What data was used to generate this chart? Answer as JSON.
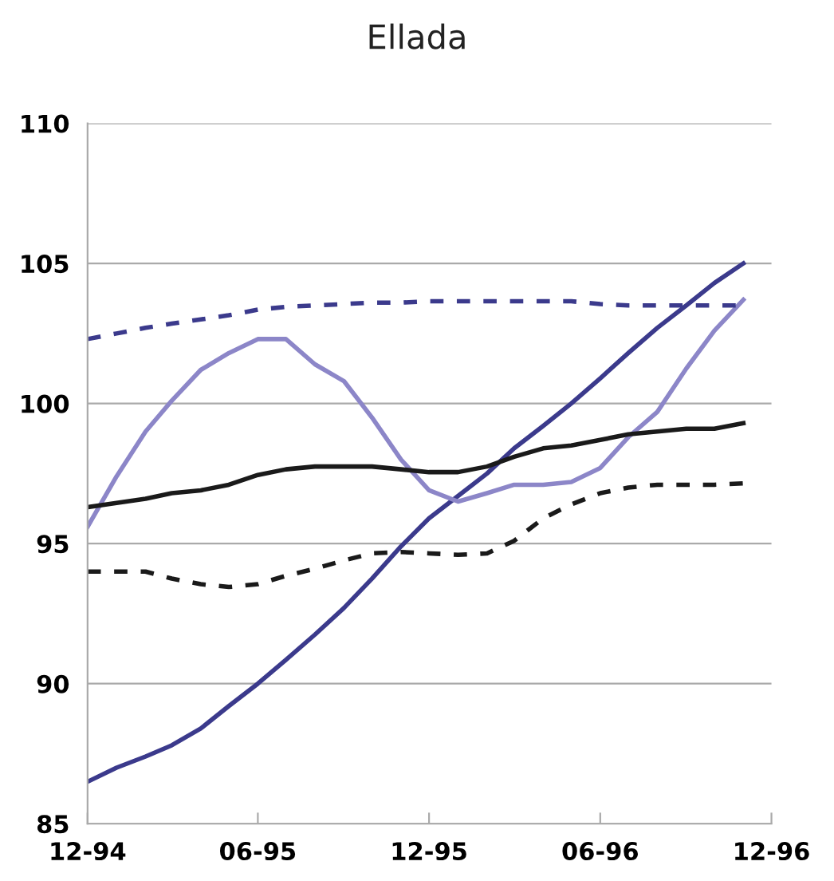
{
  "chart_data": {
    "type": "line",
    "title": "Ellada",
    "x": [
      "1994-12",
      "1995-01",
      "1995-02",
      "1995-03",
      "1995-04",
      "1995-05",
      "1995-06",
      "1995-07",
      "1995-08",
      "1995-09",
      "1995-10",
      "1995-11",
      "1995-12",
      "1996-01",
      "1996-02",
      "1996-03",
      "1996-04",
      "1996-05",
      "1996-06",
      "1996-07",
      "1996-08",
      "1996-09",
      "1996-10",
      "1996-11"
    ],
    "xlim": [
      "1994-12",
      "1996-12"
    ],
    "xticks": [
      {
        "value": "1994-12",
        "label": "12-94"
      },
      {
        "value": "1995-06",
        "label": "06-95"
      },
      {
        "value": "1995-12",
        "label": "12-95"
      },
      {
        "value": "1996-06",
        "label": "06-96"
      },
      {
        "value": "1996-12",
        "label": "12-96"
      }
    ],
    "ylim": [
      85,
      110
    ],
    "yticks": [
      85,
      90,
      95,
      100,
      105,
      110
    ],
    "grid": "y",
    "legend": false,
    "marker": "none",
    "series": [
      {
        "color": "#3b3a8c",
        "line_style": "solid",
        "values": [
          86.5,
          87.0,
          87.4,
          87.8,
          88.4,
          89.2,
          90.0,
          90.85,
          91.75,
          92.7,
          93.75,
          94.9,
          95.9,
          96.7,
          97.5,
          98.4,
          99.2,
          100.0,
          100.9,
          101.8,
          102.7,
          103.5,
          104.3,
          105.0
        ]
      },
      {
        "color": "#8c86c8",
        "line_style": "solid",
        "values": [
          95.6,
          97.4,
          99.0,
          100.1,
          101.2,
          101.8,
          102.3,
          102.3,
          101.4,
          100.8,
          99.5,
          98.0,
          96.9,
          96.5,
          96.8,
          97.1,
          97.1,
          97.2,
          97.7,
          98.8,
          99.7,
          101.25,
          102.6,
          103.7
        ]
      },
      {
        "color": "#1a1a1a",
        "line_style": "solid",
        "values": [
          96.3,
          96.45,
          96.6,
          96.8,
          96.9,
          97.1,
          97.45,
          97.65,
          97.75,
          97.75,
          97.75,
          97.65,
          97.55,
          97.55,
          97.75,
          98.1,
          98.4,
          98.5,
          98.7,
          98.9,
          99.0,
          99.1,
          99.1,
          99.3
        ]
      },
      {
        "color": "#3b3a8c",
        "line_style": "dashed",
        "values": [
          102.3,
          102.5,
          102.7,
          102.85,
          103.0,
          103.15,
          103.35,
          103.45,
          103.5,
          103.55,
          103.6,
          103.6,
          103.65,
          103.65,
          103.65,
          103.65,
          103.65,
          103.65,
          103.55,
          103.5,
          103.5,
          103.5,
          103.5,
          103.5
        ]
      },
      {
        "color": "#1a1a1a",
        "line_style": "dashed",
        "values": [
          94.0,
          94.0,
          94.0,
          93.75,
          93.55,
          93.45,
          93.55,
          93.85,
          94.1,
          94.4,
          94.65,
          94.7,
          94.65,
          94.6,
          94.65,
          95.1,
          95.9,
          96.4,
          96.8,
          97.0,
          97.1,
          97.1,
          97.1,
          97.15
        ]
      }
    ]
  }
}
